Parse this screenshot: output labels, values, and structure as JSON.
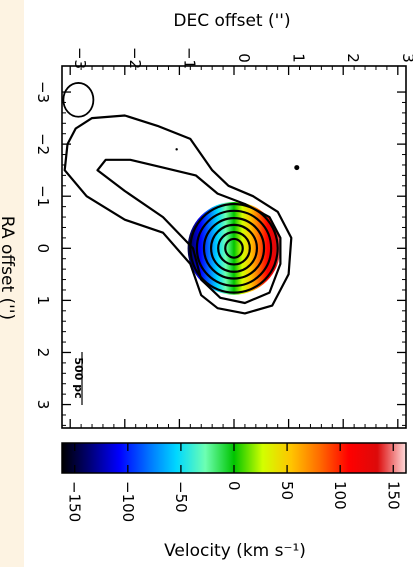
{
  "chart_data": {
    "type": "contour_velocity_map",
    "xlabel": "DEC offset ('')",
    "ylabel": "RA offset ('')",
    "colorbar_label": "Velocity (km s⁻¹)",
    "xlim": [
      -3.15,
      3.15
    ],
    "ylim": [
      -3.5,
      3.45
    ],
    "x_ticks": [
      -3,
      -2,
      -1,
      0,
      1,
      2,
      3
    ],
    "y_ticks": [
      -3,
      -2,
      -1,
      0,
      1,
      2,
      3
    ],
    "colorbar_range": [
      -162,
      162
    ],
    "colorbar_ticks": [
      -150,
      -100,
      -50,
      0,
      50,
      100,
      150
    ],
    "colormap": [
      "#000000",
      "#00007a",
      "#0000ff",
      "#0070ff",
      "#00d8ff",
      "#6dffb2",
      "#00c400",
      "#d2ff00",
      "#ffc400",
      "#ff6a00",
      "#ff0000",
      "#dc0a0a",
      "#ffdcdc"
    ],
    "scale_bar_label": "500 pc",
    "beam": {
      "dec": -2.85,
      "ra": -2.85,
      "width": 0.55,
      "height": 0.65
    },
    "velocity_disk": {
      "center_dec": 0,
      "center_ra": 0,
      "radius": 0.85,
      "v_min": -150,
      "v_max": 150
    },
    "contours": [
      [
        [
          -3.05,
          -2.0
        ],
        [
          -3.1,
          -1.5
        ],
        [
          -2.7,
          -1.0
        ],
        [
          -2.0,
          -0.55
        ],
        [
          -1.3,
          -0.3
        ],
        [
          -0.8,
          0.3
        ],
        [
          -0.6,
          0.9
        ],
        [
          -0.3,
          1.15
        ],
        [
          0.2,
          1.25
        ],
        [
          0.7,
          1.1
        ],
        [
          1.0,
          0.5
        ],
        [
          1.05,
          -0.2
        ],
        [
          0.8,
          -0.7
        ],
        [
          0.35,
          -1.0
        ],
        [
          -0.1,
          -1.2
        ],
        [
          -0.4,
          -1.5
        ],
        [
          -0.8,
          -2.1
        ],
        [
          -1.4,
          -2.35
        ],
        [
          -2.0,
          -2.55
        ],
        [
          -2.6,
          -2.5
        ],
        [
          -2.9,
          -2.3
        ],
        [
          -3.05,
          -2.0
        ]
      ],
      [
        [
          -2.5,
          -1.5
        ],
        [
          -2.0,
          -1.1
        ],
        [
          -1.3,
          -0.6
        ],
        [
          -0.75,
          0.0
        ],
        [
          -0.6,
          0.6
        ],
        [
          -0.25,
          0.95
        ],
        [
          0.2,
          1.05
        ],
        [
          0.65,
          0.85
        ],
        [
          0.85,
          0.3
        ],
        [
          0.85,
          -0.2
        ],
        [
          0.65,
          -0.6
        ],
        [
          0.2,
          -0.85
        ],
        [
          -0.3,
          -1.05
        ],
        [
          -0.7,
          -1.4
        ],
        [
          -1.3,
          -1.55
        ],
        [
          -1.9,
          -1.7
        ],
        [
          -2.35,
          -1.7
        ],
        [
          -2.5,
          -1.5
        ]
      ],
      [
        [
          0,
          0,
          0.8,
          0.85
        ]
      ],
      [
        [
          0,
          0,
          0.68,
          0.72
        ]
      ],
      [
        [
          0,
          0,
          0.55,
          0.58
        ]
      ],
      [
        [
          0,
          0,
          0.42,
          0.45
        ]
      ],
      [
        [
          0,
          0,
          0.29,
          0.31
        ]
      ],
      [
        [
          0,
          0,
          0.16,
          0.18
        ]
      ]
    ],
    "knots": [
      [
        1.15,
        -1.55
      ],
      [
        -1.05,
        -1.9
      ]
    ]
  }
}
